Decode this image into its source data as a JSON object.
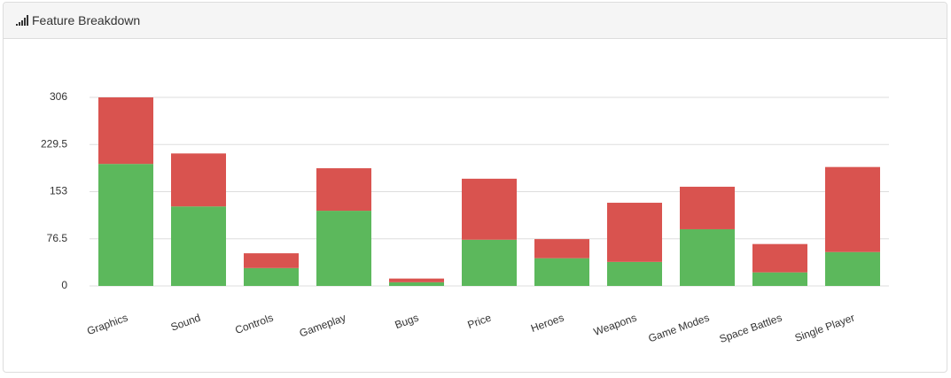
{
  "chart_data": {
    "type": "stacked_bar",
    "title": "Feature Breakdown",
    "categories": [
      "Graphics",
      "Sound",
      "Controls",
      "Gameplay",
      "Bugs",
      "Price",
      "Heroes",
      "Weapons",
      "Game Modes",
      "Space Battles",
      "Single Player"
    ],
    "series": [
      {
        "color": "#5cb85c",
        "values": [
          198,
          129,
          29,
          122,
          6,
          75,
          45,
          39,
          92,
          22,
          55
        ]
      },
      {
        "color": "#d9534f",
        "values": [
          108,
          86,
          24,
          69,
          6,
          99,
          31,
          96,
          69,
          46,
          138
        ]
      }
    ],
    "ylim": [
      0,
      306
    ],
    "yticks": [
      0,
      76.5,
      153,
      229.5,
      306
    ],
    "grid": true
  }
}
